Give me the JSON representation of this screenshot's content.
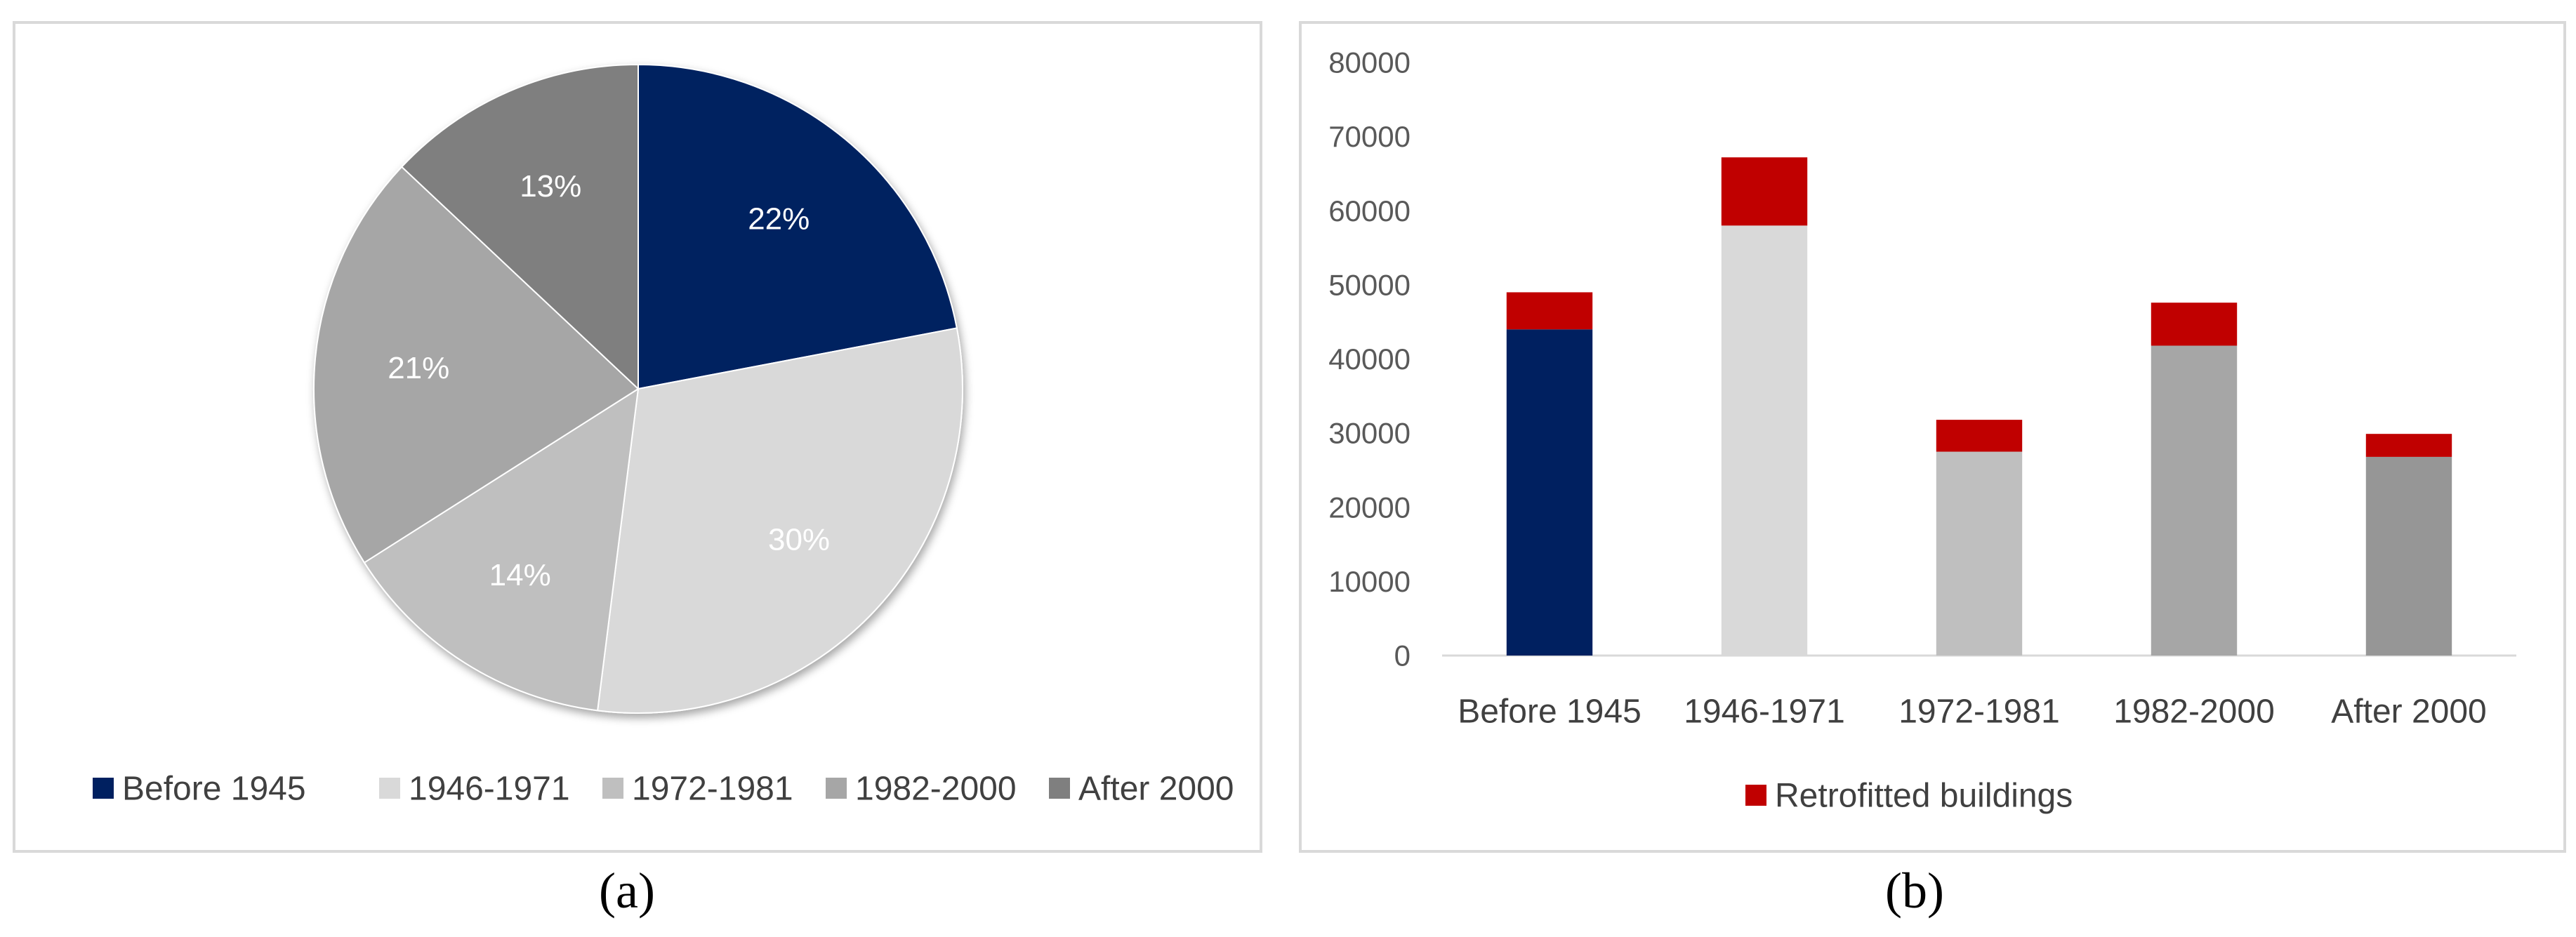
{
  "colors": {
    "before_1945": "#002060",
    "y1946_1971": "#d9d9d9",
    "y1972_1981": "#bfbfbf",
    "y1982_2000": "#a6a6a6",
    "after_2000": "#7f7f7f",
    "after_2000_bar": "#969696",
    "retrofitted": "#c00000",
    "axis_text": "#595959",
    "gridline": "#d9d9d9",
    "slice_label_text": "#ffffff"
  },
  "captions": {
    "a": "(a)",
    "b": "(b)"
  },
  "chart_data": [
    {
      "type": "pie",
      "categories": [
        "Before 1945",
        "1946-1971",
        "1972-1981",
        "1982-2000",
        "After 2000"
      ],
      "values": [
        22,
        30,
        14,
        21,
        13
      ],
      "labels": [
        "22%",
        "30%",
        "14%",
        "21%",
        "13%"
      ],
      "legend": {
        "position": "bottom"
      },
      "title": "",
      "xlabel": "",
      "ylabel": ""
    },
    {
      "type": "bar",
      "stacked": true,
      "categories": [
        "Before 1945",
        "1946-1971",
        "1972-1981",
        "1982-2000",
        "After 2000"
      ],
      "series": [
        {
          "values": [
            44000,
            58000,
            27500,
            41800,
            26800
          ]
        },
        {
          "name": "Retrofitted buildings",
          "values": [
            5000,
            9200,
            4300,
            5800,
            3100
          ]
        }
      ],
      "ylim": [
        0,
        80000
      ],
      "yticks": [
        "0",
        "10000",
        "20000",
        "30000",
        "40000",
        "50000",
        "60000",
        "70000",
        "80000"
      ],
      "legend": {
        "position": "bottom"
      },
      "grid": false,
      "title": "",
      "xlabel": "",
      "ylabel": ""
    }
  ]
}
